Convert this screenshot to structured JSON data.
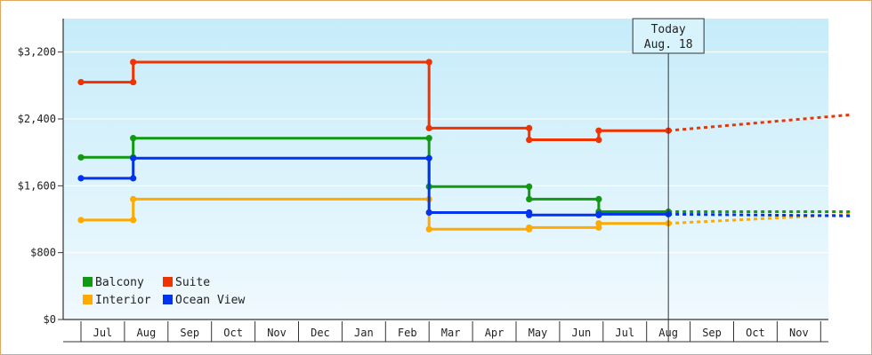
{
  "chart_data": {
    "type": "line",
    "title": "",
    "xlabel": "",
    "ylabel": "",
    "ylim": [
      0,
      3200
    ],
    "yticks": [
      {
        "value": 0,
        "label": "$0"
      },
      {
        "value": 800,
        "label": "$800"
      },
      {
        "value": 1600,
        "label": "$1,600"
      },
      {
        "value": 2400,
        "label": "$2,400"
      },
      {
        "value": 3200,
        "label": "$3,200"
      }
    ],
    "months": [
      "Jul",
      "Aug",
      "Sep",
      "Oct",
      "Nov",
      "Dec",
      "Jan",
      "Feb",
      "Mar",
      "Apr",
      "May",
      "Jun",
      "Jul",
      "Aug",
      "Sep",
      "Oct",
      "Nov"
    ],
    "today": {
      "label1": "Today",
      "label2": "Aug. 18",
      "x": 13.5
    },
    "legend_position": "bottom-left",
    "series": [
      {
        "name": "Balcony",
        "color": "#119911",
        "points": [
          [
            0,
            1940
          ],
          [
            1.2,
            1940
          ],
          [
            1.2,
            2170
          ],
          [
            8.0,
            2170
          ],
          [
            8.0,
            1590
          ],
          [
            10.3,
            1590
          ],
          [
            10.3,
            1440
          ],
          [
            11.9,
            1440
          ],
          [
            11.9,
            1290
          ],
          [
            13.5,
            1290
          ]
        ],
        "forecast": [
          [
            13.5,
            1290
          ],
          [
            17.7,
            1290
          ]
        ]
      },
      {
        "name": "Suite",
        "color": "#ee3300",
        "points": [
          [
            0,
            2840
          ],
          [
            1.2,
            2840
          ],
          [
            1.2,
            3080
          ],
          [
            8.0,
            3080
          ],
          [
            8.0,
            2290
          ],
          [
            10.3,
            2290
          ],
          [
            10.3,
            2150
          ],
          [
            11.9,
            2150
          ],
          [
            11.9,
            2260
          ],
          [
            13.5,
            2260
          ]
        ],
        "forecast": [
          [
            13.5,
            2260
          ],
          [
            17.7,
            2450
          ]
        ]
      },
      {
        "name": "Interior",
        "color": "#ffaa00",
        "points": [
          [
            0,
            1190
          ],
          [
            1.2,
            1190
          ],
          [
            1.2,
            1440
          ],
          [
            8.0,
            1440
          ],
          [
            8.0,
            1080
          ],
          [
            10.3,
            1080
          ],
          [
            10.3,
            1100
          ],
          [
            11.9,
            1100
          ],
          [
            11.9,
            1150
          ],
          [
            13.5,
            1150
          ]
        ],
        "forecast": [
          [
            13.5,
            1150
          ],
          [
            17.7,
            1260
          ]
        ]
      },
      {
        "name": "Ocean View",
        "color": "#0033ee",
        "points": [
          [
            0,
            1690
          ],
          [
            1.2,
            1690
          ],
          [
            1.2,
            1930
          ],
          [
            8.0,
            1930
          ],
          [
            8.0,
            1280
          ],
          [
            10.3,
            1280
          ],
          [
            10.3,
            1250
          ],
          [
            11.9,
            1250
          ],
          [
            11.9,
            1260
          ],
          [
            13.5,
            1260
          ]
        ],
        "forecast": [
          [
            13.5,
            1260
          ],
          [
            17.7,
            1240
          ]
        ]
      }
    ]
  }
}
